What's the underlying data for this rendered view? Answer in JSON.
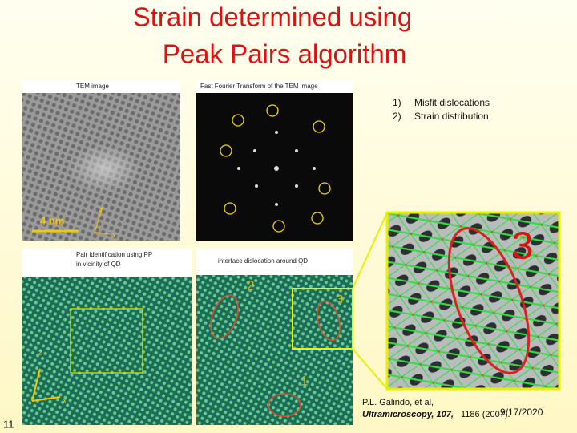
{
  "header": {
    "title_lines": [
      "Strain determined using",
      "Peak Pairs algorithm"
    ]
  },
  "panels": {
    "tem": {
      "label": "TEM image",
      "scale": "4 nm",
      "axis_z": "z",
      "axis_x": "x"
    },
    "fft": {
      "label": "Fast Fourier Transform of the TEM image"
    },
    "pairs": {
      "label_lines": [
        "Pair identification using PP",
        "in vicinity of QD"
      ],
      "axis_z": "z",
      "axis_x": "x"
    },
    "interface": {
      "label": "interface dislocation around QD",
      "markers": [
        "2",
        "3",
        "1"
      ]
    },
    "zoom": {
      "marker": "3"
    }
  },
  "list": [
    {
      "number": "1)",
      "text": "Misfit dislocations"
    },
    {
      "number": "2)",
      "text": "Strain distribution"
    }
  ],
  "citation": {
    "authors": "P.L. Galindo, et al,",
    "journal": "Ultramicroscopy, 107,",
    "rest": "1186 (2007)."
  },
  "footer": {
    "date": "9/17/2020",
    "slide_number": "11"
  }
}
